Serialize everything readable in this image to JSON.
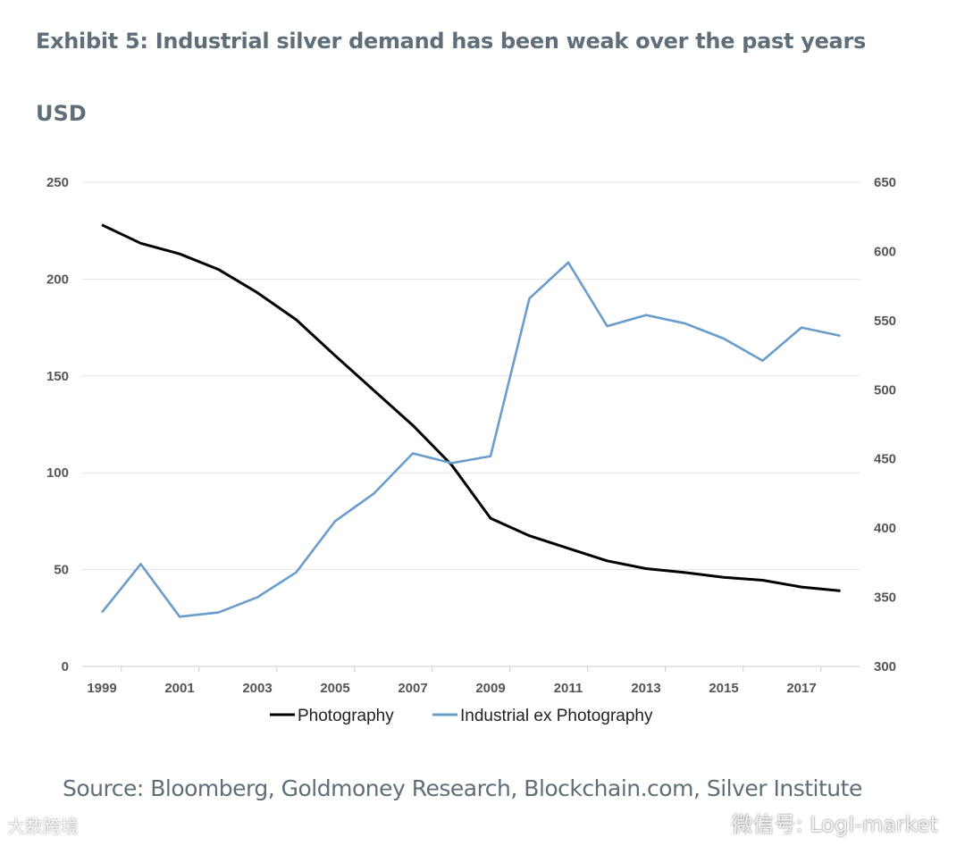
{
  "chart_data": {
    "type": "line",
    "title": "Exhibit 5: Industrial silver demand has been weak over the past years",
    "ylabel": "USD",
    "x": [
      1999,
      2000,
      2001,
      2002,
      2003,
      2004,
      2005,
      2006,
      2007,
      2008,
      2009,
      2010,
      2011,
      2012,
      2013,
      2014,
      2015,
      2016,
      2017,
      2018
    ],
    "xticks": [
      "1999",
      "2001",
      "2003",
      "2005",
      "2007",
      "2009",
      "2011",
      "2013",
      "2015",
      "2017"
    ],
    "ylim": [
      0,
      250
    ],
    "yticks": [
      "0",
      "50",
      "100",
      "150",
      "200",
      "250"
    ],
    "y2lim": [
      300,
      650
    ],
    "y2ticks": [
      "300",
      "350",
      "400",
      "450",
      "500",
      "550",
      "600",
      "650"
    ],
    "grid": true,
    "legend_position": "bottom",
    "series": [
      {
        "name": "Photography",
        "axis": "left",
        "color": "#000000",
        "values": [
          228,
          218.5,
          213,
          205,
          193,
          179,
          160.5,
          142.5,
          124.5,
          104,
          76.5,
          67.5,
          61,
          54.5,
          50.5,
          48.5,
          46,
          44.5,
          41,
          39
        ]
      },
      {
        "name": "Industrial ex Photography",
        "axis": "right",
        "color": "#6a9ccc",
        "values": [
          339,
          374,
          336,
          339,
          350,
          368,
          405,
          425,
          454,
          447,
          452,
          566,
          592,
          546,
          554,
          548,
          537,
          521,
          545,
          539
        ]
      }
    ],
    "source": "Source: Bloomberg, Goldmoney Research, Blockchain.com, Silver Institute"
  },
  "watermarks": {
    "wechat": "微信号: LogI-market",
    "brand": "大数跨境"
  }
}
